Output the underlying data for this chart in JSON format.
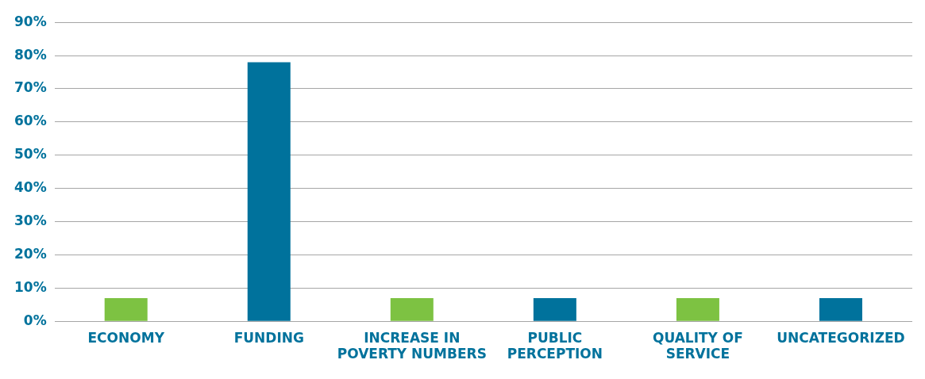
{
  "chart_data": {
    "type": "bar",
    "categories": [
      "ECONOMY",
      "FUNDING",
      "INCREASE IN POVERTY NUMBERS",
      "PUBLIC PERCEPTION",
      "QUALITY OF SERVICE",
      "UNCATEGORIZED"
    ],
    "values": [
      7,
      78,
      7,
      7,
      7,
      7
    ],
    "colors": [
      "#7dc242",
      "#00729c",
      "#7dc242",
      "#00729c",
      "#7dc242",
      "#00729c"
    ],
    "ylim": [
      0,
      90
    ],
    "yticks": [
      {
        "value": 0,
        "label": "0%"
      },
      {
        "value": 10,
        "label": "10%"
      },
      {
        "value": 20,
        "label": "20%"
      },
      {
        "value": 30,
        "label": "30%"
      },
      {
        "value": 40,
        "label": "40%"
      },
      {
        "value": 50,
        "label": "50%"
      },
      {
        "value": 60,
        "label": "60%"
      },
      {
        "value": 70,
        "label": "70%"
      },
      {
        "value": 80,
        "label": "80%"
      },
      {
        "value": 90,
        "label": "90%"
      }
    ],
    "grid": "y"
  }
}
